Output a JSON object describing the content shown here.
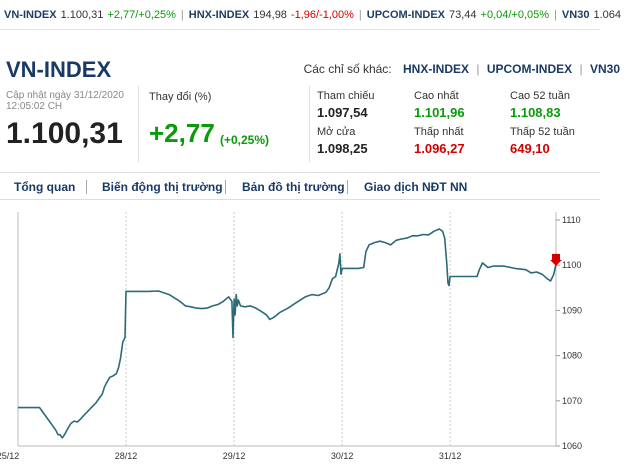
{
  "ticker": [
    {
      "name": "VN-INDEX",
      "value": "1.100,31",
      "change": "+2,77/+0,25%",
      "dir": "up"
    },
    {
      "name": "HNX-INDEX",
      "value": "194,98",
      "change": "-1,96/-1,00%",
      "dir": "down"
    },
    {
      "name": "UPCOM-INDEX",
      "value": "73,44",
      "change": "+0,04/+0,05%",
      "dir": "up"
    },
    {
      "name": "VN30",
      "value": "1.064",
      "change": "",
      "dir": "up"
    }
  ],
  "header": {
    "title": "VN-INDEX",
    "others_label": "Các chỉ số khác:",
    "others": [
      "HNX-INDEX",
      "UPCOM-INDEX",
      "VN30"
    ]
  },
  "summary": {
    "updated_label": "Cập nhật ngày 31/12/2020",
    "updated_time": "12:05:02 CH",
    "value": "1.100,31",
    "change_label": "Thay đổi (%)",
    "change": "+2,77",
    "change_pct": "(+0,25%)"
  },
  "stats": {
    "ref_label": "Tham chiếu",
    "ref": "1.097,54",
    "open_label": "Mở cửa",
    "open": "1.098,25",
    "high_label": "Cao nhất",
    "high": "1.101,96",
    "low_label": "Thấp nhất",
    "low": "1.096,27",
    "high52_label": "Cao 52 tuần",
    "high52": "1.108,83",
    "low52_label": "Thấp 52 tuần",
    "low52": "649,10"
  },
  "tabs": [
    "Tổng quan",
    "Biến động thị trường",
    "Bản đồ thị trường",
    "Giao dịch NĐT NN"
  ],
  "colors": {
    "line": "#2b6b78",
    "up": "#0a9a0a",
    "down": "#d40000",
    "brand": "#1a3a66"
  },
  "chart_data": {
    "type": "line",
    "x_ticks": [
      "25/12",
      "28/12",
      "29/12",
      "30/12",
      "31/12"
    ],
    "y_ticks": [
      1060,
      1070,
      1080,
      1090,
      1100,
      1110
    ],
    "ylim": [
      1060,
      1110
    ],
    "grid": "vertical",
    "last_marker": "down-arrow",
    "series": [
      {
        "values": [
          [
            0.0,
            1068.5
          ],
          [
            0.06,
            1068.5
          ],
          [
            0.16,
            1068.5
          ],
          [
            0.2,
            1068.5
          ],
          [
            0.23,
            1067.5
          ],
          [
            0.26,
            1066.5
          ],
          [
            0.29,
            1065.5
          ],
          [
            0.32,
            1064.5
          ],
          [
            0.35,
            1063.5
          ],
          [
            0.37,
            1062.5
          ],
          [
            0.39,
            1062.5
          ],
          [
            0.41,
            1061.8
          ],
          [
            0.43,
            1062.5
          ],
          [
            0.46,
            1063.8
          ],
          [
            0.49,
            1065.0
          ],
          [
            0.52,
            1065.5
          ],
          [
            0.55,
            1065.3
          ],
          [
            0.58,
            1066.0
          ],
          [
            0.61,
            1066.8
          ],
          [
            0.64,
            1067.5
          ],
          [
            0.67,
            1068.3
          ],
          [
            0.7,
            1069.0
          ],
          [
            0.72,
            1069.5
          ],
          [
            0.75,
            1070.5
          ],
          [
            0.78,
            1071.5
          ],
          [
            0.8,
            1073.0
          ],
          [
            0.82,
            1074.0
          ],
          [
            0.85,
            1075.2
          ],
          [
            0.88,
            1075.5
          ],
          [
            0.91,
            1076.0
          ],
          [
            0.93,
            1077.3
          ],
          [
            0.95,
            1079.5
          ],
          [
            0.97,
            1083.0
          ],
          [
            0.99,
            1084.0
          ],
          [
            1.0,
            1094.2
          ],
          [
            1.1,
            1094.2
          ],
          [
            1.2,
            1094.2
          ],
          [
            1.3,
            1094.3
          ],
          [
            1.4,
            1093.5
          ],
          [
            1.5,
            1092.0
          ],
          [
            1.55,
            1091.0
          ],
          [
            1.6,
            1090.8
          ],
          [
            1.65,
            1090.5
          ],
          [
            1.7,
            1090.4
          ],
          [
            1.75,
            1090.5
          ],
          [
            1.8,
            1091.0
          ],
          [
            1.85,
            1091.3
          ],
          [
            1.9,
            1092.0
          ],
          [
            1.95,
            1093.0
          ],
          [
            1.98,
            1092.0
          ],
          [
            1.99,
            1084.0
          ],
          [
            2.0,
            1092.5
          ],
          [
            2.01,
            1089.0
          ],
          [
            2.02,
            1093.5
          ],
          [
            2.03,
            1091.0
          ],
          [
            2.04,
            1092.3
          ],
          [
            2.06,
            1091.0
          ],
          [
            2.1,
            1090.8
          ],
          [
            2.15,
            1091.0
          ],
          [
            2.2,
            1090.5
          ],
          [
            2.25,
            1089.8
          ],
          [
            2.3,
            1089.0
          ],
          [
            2.33,
            1088.0
          ],
          [
            2.37,
            1088.5
          ],
          [
            2.42,
            1089.5
          ],
          [
            2.5,
            1090.5
          ],
          [
            2.58,
            1091.8
          ],
          [
            2.66,
            1093.0
          ],
          [
            2.72,
            1093.5
          ],
          [
            2.78,
            1093.3
          ],
          [
            2.85,
            1094.0
          ],
          [
            2.88,
            1095.0
          ],
          [
            2.91,
            1097.0
          ],
          [
            2.94,
            1097.5
          ],
          [
            2.97,
            1100.5
          ],
          [
            2.98,
            1102.5
          ],
          [
            2.99,
            1098.0
          ],
          [
            3.0,
            1099.3
          ],
          [
            3.1,
            1099.3
          ],
          [
            3.15,
            1099.3
          ],
          [
            3.2,
            1099.5
          ],
          [
            3.22,
            1103.0
          ],
          [
            3.25,
            1104.5
          ],
          [
            3.3,
            1105.0
          ],
          [
            3.35,
            1105.3
          ],
          [
            3.4,
            1105.0
          ],
          [
            3.45,
            1104.5
          ],
          [
            3.5,
            1105.5
          ],
          [
            3.55,
            1105.8
          ],
          [
            3.6,
            1106.0
          ],
          [
            3.65,
            1106.5
          ],
          [
            3.7,
            1106.5
          ],
          [
            3.75,
            1106.8
          ],
          [
            3.8,
            1106.7
          ],
          [
            3.85,
            1107.5
          ],
          [
            3.9,
            1108.0
          ],
          [
            3.93,
            1107.5
          ],
          [
            3.95,
            1106.0
          ],
          [
            3.97,
            1100.0
          ],
          [
            3.98,
            1096.0
          ],
          [
            3.99,
            1095.5
          ],
          [
            4.0,
            1097.5
          ],
          [
            4.1,
            1097.5
          ],
          [
            4.2,
            1097.5
          ],
          [
            4.25,
            1097.5
          ],
          [
            4.27,
            1099.0
          ],
          [
            4.3,
            1100.5
          ],
          [
            4.35,
            1099.5
          ],
          [
            4.4,
            1099.8
          ],
          [
            4.5,
            1099.8
          ],
          [
            4.6,
            1099.3
          ],
          [
            4.7,
            1099.0
          ],
          [
            4.75,
            1098.3
          ],
          [
            4.8,
            1098.5
          ],
          [
            4.85,
            1098.0
          ],
          [
            4.9,
            1097.0
          ],
          [
            4.93,
            1096.5
          ],
          [
            4.96,
            1098.0
          ],
          [
            4.98,
            1100.3
          ]
        ]
      }
    ]
  }
}
